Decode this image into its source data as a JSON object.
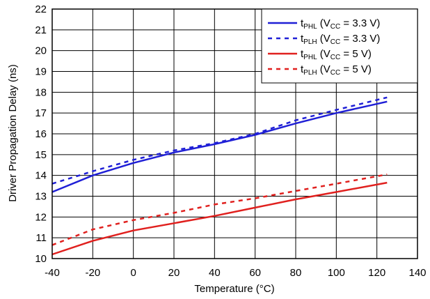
{
  "chart_data": {
    "type": "line",
    "xlabel": "Temperature (°C)",
    "ylabel": "Driver Propagation Delay (ns)",
    "xlim": [
      -40,
      140
    ],
    "ylim": [
      10,
      22
    ],
    "xticks": [
      -40,
      -20,
      0,
      20,
      40,
      60,
      80,
      100,
      120,
      140
    ],
    "yticks": [
      10,
      11,
      12,
      13,
      14,
      15,
      16,
      17,
      18,
      19,
      20,
      21,
      22
    ],
    "grid": true,
    "legend_position": "top-right",
    "series": [
      {
        "name": "tPHL (VCC = 3.3 V)",
        "label": {
          "t": "t",
          "sub1": "PHL",
          "mid": " (V",
          "sub2": "CC",
          "end": " = 3.3 V)"
        },
        "color": "#1f1fd6",
        "style": "solid",
        "x": [
          -40,
          -20,
          0,
          20,
          40,
          60,
          80,
          100,
          125
        ],
        "y": [
          13.2,
          14.0,
          14.6,
          15.1,
          15.5,
          15.95,
          16.5,
          17.0,
          17.55
        ]
      },
      {
        "name": "tPLH (VCC = 3.3 V)",
        "label": {
          "t": "t",
          "sub1": "PLH",
          "mid": "  (V",
          "sub2": "CC",
          "end": " = 3.3 V)"
        },
        "color": "#1f1fd6",
        "style": "dashed",
        "x": [
          -40,
          -20,
          0,
          20,
          40,
          60,
          80,
          100,
          125
        ],
        "y": [
          13.6,
          14.2,
          14.75,
          15.2,
          15.55,
          16.0,
          16.65,
          17.15,
          17.75
        ]
      },
      {
        "name": "tPHL (VCC = 5 V)",
        "label": {
          "t": "t",
          "sub1": "PHL",
          "mid": "  (V",
          "sub2": "CC",
          "end": " = 5 V)"
        },
        "color": "#e0201e",
        "style": "solid",
        "x": [
          -40,
          -20,
          0,
          20,
          40,
          60,
          80,
          100,
          125
        ],
        "y": [
          10.2,
          10.85,
          11.35,
          11.7,
          12.05,
          12.45,
          12.85,
          13.2,
          13.65
        ]
      },
      {
        "name": "tPLH (VCC = 5 V)",
        "label": {
          "t": "t",
          "sub1": "PLH",
          "mid": "  (V",
          "sub2": "CC",
          "end": " = 5 V)"
        },
        "color": "#e0201e",
        "style": "dashed",
        "x": [
          -40,
          -20,
          0,
          20,
          40,
          60,
          80,
          100,
          125
        ],
        "y": [
          10.65,
          11.4,
          11.85,
          12.2,
          12.6,
          12.9,
          13.25,
          13.6,
          14.05
        ]
      }
    ]
  }
}
